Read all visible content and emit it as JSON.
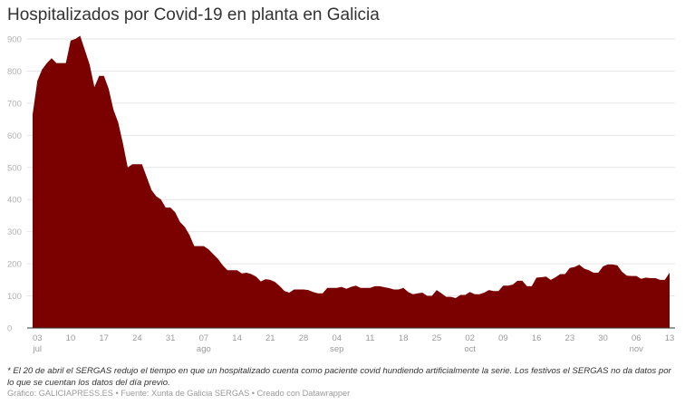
{
  "title": "Hospitalizados por Covid-19 en planta en Galicia",
  "note": "* El 20 de abril el SERGAS redujo el tiempo en que un hospitalizado cuenta como paciente covid hundiendo artificialmente la serie. Los festivos el SERGAS no da datos por lo que se cuentan los datos del día previo.",
  "credits": "Gráfico: GALICIAPRESS.ES • Fuente: Xunta de Galicia SERGAS • Creado con Datawrapper",
  "colors": {
    "area": "#7b0000",
    "grid": "#e6e6e6",
    "axis": "#333333"
  },
  "chart_data": {
    "type": "area",
    "title": "Hospitalizados por Covid-19 en planta en Galicia",
    "xlabel": "",
    "ylabel": "",
    "ylim": [
      0,
      900
    ],
    "grid": true,
    "legend": null,
    "y_ticks": [
      0,
      100,
      200,
      300,
      400,
      500,
      600,
      700,
      800,
      900
    ],
    "x_ticks": [
      {
        "day": 1,
        "label": "03",
        "month": "jul"
      },
      {
        "day": 8,
        "label": "10",
        "month": ""
      },
      {
        "day": 15,
        "label": "17",
        "month": ""
      },
      {
        "day": 22,
        "label": "24",
        "month": ""
      },
      {
        "day": 29,
        "label": "31",
        "month": ""
      },
      {
        "day": 36,
        "label": "07",
        "month": "ago"
      },
      {
        "day": 43,
        "label": "14",
        "month": ""
      },
      {
        "day": 50,
        "label": "21",
        "month": ""
      },
      {
        "day": 57,
        "label": "28",
        "month": ""
      },
      {
        "day": 64,
        "label": "04",
        "month": "sep"
      },
      {
        "day": 71,
        "label": "11",
        "month": ""
      },
      {
        "day": 78,
        "label": "18",
        "month": ""
      },
      {
        "day": 85,
        "label": "25",
        "month": ""
      },
      {
        "day": 92,
        "label": "02",
        "month": "oct"
      },
      {
        "day": 99,
        "label": "09",
        "month": ""
      },
      {
        "day": 106,
        "label": "16",
        "month": ""
      },
      {
        "day": 113,
        "label": "23",
        "month": ""
      },
      {
        "day": 120,
        "label": "30",
        "month": ""
      },
      {
        "day": 127,
        "label": "06",
        "month": "nov"
      },
      {
        "day": 134,
        "label": "13",
        "month": ""
      }
    ],
    "start_date": "02 jul",
    "end_date": "13 nov",
    "values": [
      665,
      770,
      805,
      825,
      840,
      825,
      825,
      825,
      895,
      900,
      910,
      865,
      820,
      750,
      785,
      785,
      745,
      680,
      640,
      575,
      500,
      510,
      510,
      510,
      470,
      430,
      410,
      400,
      375,
      375,
      360,
      330,
      315,
      290,
      255,
      255,
      255,
      245,
      230,
      215,
      195,
      180,
      180,
      180,
      170,
      172,
      168,
      160,
      145,
      152,
      150,
      143,
      130,
      115,
      110,
      120,
      120,
      120,
      118,
      112,
      108,
      108,
      125,
      125,
      125,
      128,
      122,
      128,
      132,
      125,
      125,
      125,
      130,
      130,
      127,
      124,
      120,
      120,
      125,
      112,
      105,
      108,
      110,
      100,
      100,
      118,
      108,
      97,
      97,
      93,
      103,
      103,
      112,
      105,
      105,
      110,
      118,
      115,
      115,
      132,
      132,
      135,
      147,
      147,
      130,
      130,
      157,
      158,
      160,
      150,
      158,
      168,
      168,
      187,
      190,
      197,
      185,
      180,
      172,
      172,
      192,
      198,
      198,
      195,
      175,
      163,
      162,
      162,
      153,
      157,
      155,
      155,
      150,
      150,
      172
    ]
  }
}
